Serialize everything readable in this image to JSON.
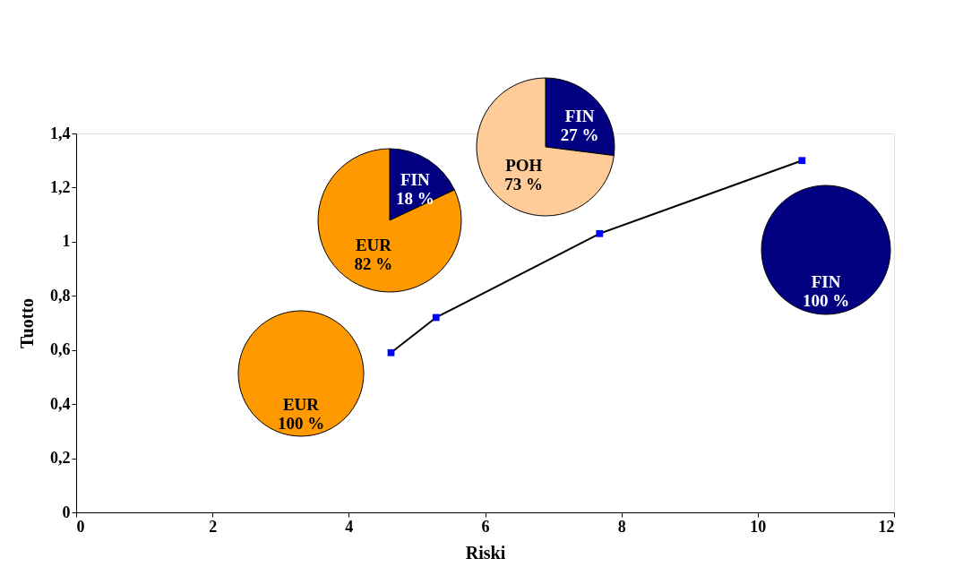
{
  "chart_data": [
    {
      "type": "line",
      "xlabel": "Riski",
      "ylabel": "Tuotto",
      "x": [
        4.62,
        5.28,
        7.68,
        10.65
      ],
      "series": [
        {
          "color": "#000000",
          "colors": [
            "#0000ff",
            "#0000ff",
            "#0000ff",
            "#0000ff"
          ],
          "values": [
            0.59,
            0.72,
            1.03,
            1.3
          ]
        }
      ],
      "xlim": [
        0,
        12
      ],
      "xticks": [
        0,
        2,
        4,
        6,
        8,
        10,
        12
      ],
      "ylim": [
        0,
        1.4
      ],
      "yticks": [
        0,
        {
          "value": 0.2,
          "label": "0,2"
        },
        {
          "value": 0.4,
          "label": "0,4"
        },
        {
          "value": 0.6,
          "label": "0,6"
        },
        {
          "value": 0.8,
          "label": "0,8"
        },
        1,
        {
          "value": 1.2,
          "label": "1,2"
        },
        {
          "value": 1.4,
          "label": "1,4"
        }
      ],
      "grid": false,
      "marker": "square",
      "line_style": "solid"
    },
    {
      "type": "pie",
      "categories": [
        "FIN"
      ],
      "values": [
        100
      ],
      "colors": [
        "#000080"
      ],
      "value_labels": [
        "100 %"
      ]
    },
    {
      "type": "pie",
      "categories": [
        "FIN",
        "EUR"
      ],
      "values": [
        18,
        82
      ],
      "colors": [
        "#000080",
        "#ff9900"
      ],
      "value_labels": [
        "18 %",
        "82 %"
      ]
    },
    {
      "type": "pie",
      "categories": [
        "FIN",
        "POH"
      ],
      "values": [
        27,
        73
      ],
      "colors": [
        "#000080",
        "#ffcc99"
      ],
      "value_labels": [
        "27 %",
        "73 %"
      ]
    },
    {
      "type": "pie",
      "categories": [
        "EUR"
      ],
      "values": [
        100
      ],
      "colors": [
        "#ff9900"
      ],
      "value_labels": [
        "100 %"
      ]
    }
  ]
}
